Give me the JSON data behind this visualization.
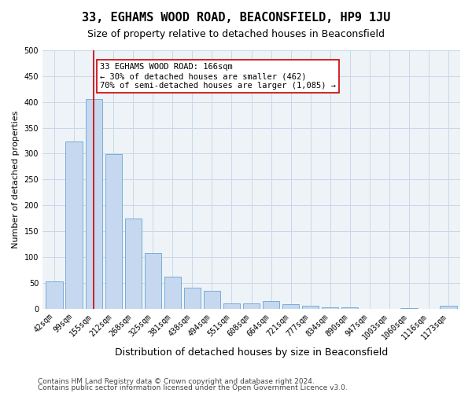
{
  "title": "33, EGHAMS WOOD ROAD, BEACONSFIELD, HP9 1JU",
  "subtitle": "Size of property relative to detached houses in Beaconsfield",
  "xlabel": "Distribution of detached houses by size in Beaconsfield",
  "ylabel": "Number of detached properties",
  "categories": [
    "42sqm",
    "99sqm",
    "155sqm",
    "212sqm",
    "268sqm",
    "325sqm",
    "381sqm",
    "438sqm",
    "494sqm",
    "551sqm",
    "608sqm",
    "664sqm",
    "721sqm",
    "777sqm",
    "834sqm",
    "890sqm",
    "947sqm",
    "1003sqm",
    "1060sqm",
    "1116sqm",
    "1173sqm"
  ],
  "values": [
    52,
    323,
    406,
    299,
    175,
    107,
    62,
    40,
    35,
    10,
    10,
    14,
    9,
    6,
    3,
    2,
    0,
    0,
    1,
    0,
    6
  ],
  "bar_color": "#c5d8f0",
  "bar_edge_color": "#7aadd4",
  "vline_x": 2,
  "vline_color": "#cc0000",
  "annotation_text": "33 EGHAMS WOOD ROAD: 166sqm\n← 30% of detached houses are smaller (462)\n70% of semi-detached houses are larger (1,085) →",
  "annotation_box_color": "#ffffff",
  "annotation_box_edge": "#cc0000",
  "ylim": [
    0,
    500
  ],
  "yticks": [
    0,
    50,
    100,
    150,
    200,
    250,
    300,
    350,
    400,
    450,
    500
  ],
  "footer1": "Contains HM Land Registry data © Crown copyright and database right 2024.",
  "footer2": "Contains public sector information licensed under the Open Government Licence v3.0.",
  "bg_color": "#ffffff",
  "grid_color": "#c8d8e8",
  "title_fontsize": 11,
  "subtitle_fontsize": 9,
  "xlabel_fontsize": 9,
  "ylabel_fontsize": 8,
  "tick_fontsize": 7,
  "annotation_fontsize": 7.5,
  "footer_fontsize": 6.5
}
